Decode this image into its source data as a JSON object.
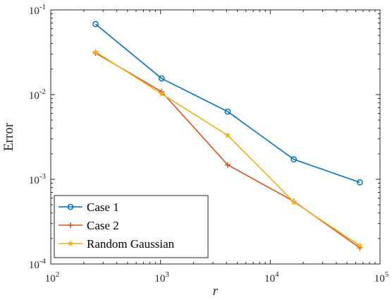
{
  "chart_data": {
    "type": "line",
    "xscale": "log",
    "yscale": "log",
    "xlim": [
      100,
      100000
    ],
    "ylim": [
      0.0001,
      0.1
    ],
    "xlabel": "r",
    "ylabel": "Error",
    "grid": false,
    "legend_position": "bottom-left",
    "x_ticks": [
      {
        "base": "10",
        "exp": "2",
        "value": 100
      },
      {
        "base": "10",
        "exp": "3",
        "value": 1000
      },
      {
        "base": "10",
        "exp": "4",
        "value": 10000
      },
      {
        "base": "10",
        "exp": "5",
        "value": 100000
      }
    ],
    "y_ticks": [
      {
        "base": "10",
        "exp": "-4",
        "value": 0.0001
      },
      {
        "base": "10",
        "exp": "-3",
        "value": 0.001
      },
      {
        "base": "10",
        "exp": "-2",
        "value": 0.01
      },
      {
        "base": "10",
        "exp": "-1",
        "value": 0.1
      }
    ],
    "x": [
      256,
      1024,
      4096,
      16384,
      65536
    ],
    "series": [
      {
        "name": "Case 1",
        "color": "#0072BD",
        "marker": "circle",
        "values": [
          0.068,
          0.0155,
          0.0063,
          0.00172,
          0.00092
        ]
      },
      {
        "name": "Case 2",
        "color": "#D95319",
        "marker": "plus",
        "values": [
          0.031,
          0.0108,
          0.00148,
          0.00055,
          0.000155
        ]
      },
      {
        "name": "Random Gaussian",
        "color": "#EDB120",
        "marker": "star",
        "values": [
          0.032,
          0.0102,
          0.0033,
          0.00054,
          0.000165
        ]
      }
    ]
  }
}
